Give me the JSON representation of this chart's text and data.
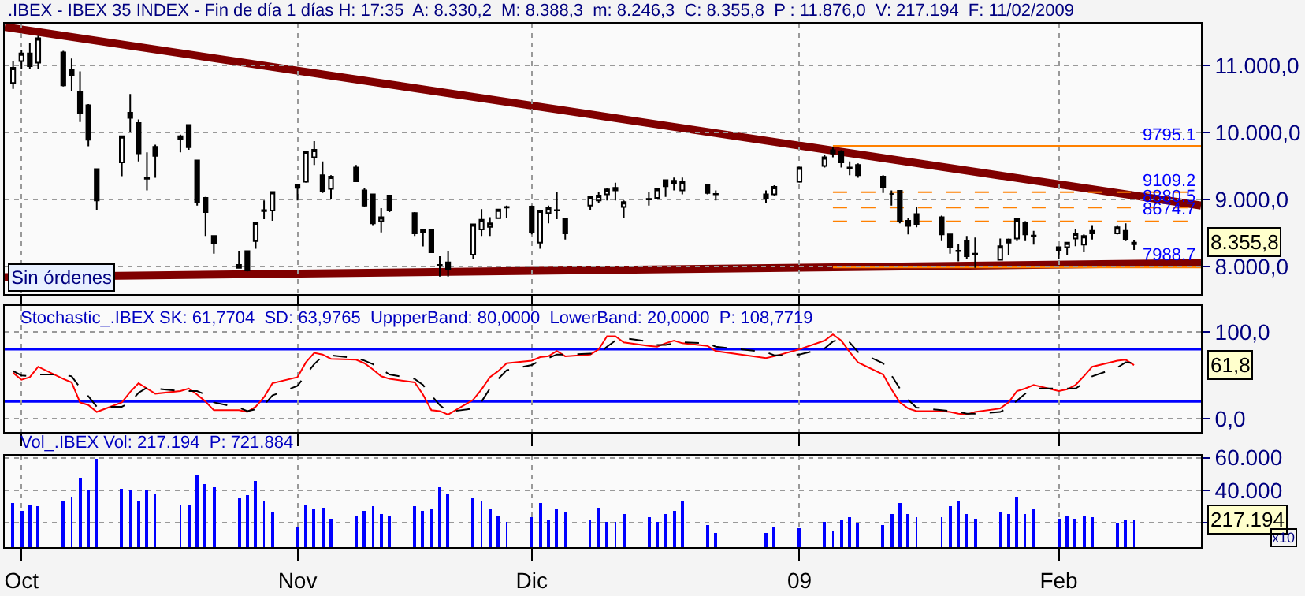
{
  "chart_data": [
    {
      "type": "candlestick",
      "title": ".IBEX - IBEX 35 INDEX - Fin de día 1 días H: 17:35  A: 8.330,2  M: 8.388,3  m: 8.246,3  C: 8.355,8  P : 11.876,0  V: 217.194  F: 11/02/2009",
      "x": [
        "2008-09-30",
        "2008-10-01",
        "2008-10-02",
        "2008-10-03",
        "2008-10-06",
        "2008-10-07",
        "2008-10-08",
        "2008-10-09",
        "2008-10-10",
        "2008-10-13",
        "2008-10-14",
        "2008-10-15",
        "2008-10-16",
        "2008-10-17",
        "2008-10-20",
        "2008-10-21",
        "2008-10-22",
        "2008-10-23",
        "2008-10-24",
        "2008-10-27",
        "2008-10-28",
        "2008-10-29",
        "2008-10-30",
        "2008-10-31",
        "2008-11-03",
        "2008-11-04",
        "2008-11-05",
        "2008-11-06",
        "2008-11-07",
        "2008-11-10",
        "2008-11-11",
        "2008-11-12",
        "2008-11-13",
        "2008-11-14",
        "2008-11-17",
        "2008-11-18",
        "2008-11-19",
        "2008-11-20",
        "2008-11-21",
        "2008-11-24",
        "2008-11-25",
        "2008-11-26",
        "2008-11-27",
        "2008-11-28",
        "2008-12-01",
        "2008-12-02",
        "2008-12-03",
        "2008-12-04",
        "2008-12-05",
        "2008-12-08",
        "2008-12-09",
        "2008-12-10",
        "2008-12-11",
        "2008-12-12",
        "2008-12-15",
        "2008-12-16",
        "2008-12-17",
        "2008-12-18",
        "2008-12-19",
        "2008-12-22",
        "2008-12-23",
        "2008-12-29",
        "2008-12-30",
        "2009-01-02",
        "2009-01-05",
        "2009-01-06",
        "2009-01-07",
        "2009-01-08",
        "2009-01-09",
        "2009-01-12",
        "2009-01-13",
        "2009-01-14",
        "2009-01-15",
        "2009-01-16",
        "2009-01-19",
        "2009-01-20",
        "2009-01-21",
        "2009-01-22",
        "2009-01-23",
        "2009-01-26",
        "2009-01-27",
        "2009-01-28",
        "2009-01-29",
        "2009-01-30",
        "2009-02-02",
        "2009-02-03",
        "2009-02-04",
        "2009-02-05",
        "2009-02-06",
        "2009-02-09",
        "2009-02-10",
        "2009-02-11"
      ],
      "ohlc": [
        [
          10744,
          11070,
          10653,
          10971
        ],
        [
          11070,
          11237,
          10956,
          11184
        ],
        [
          11184,
          11335,
          10956,
          10994
        ],
        [
          11047,
          11449,
          10956,
          11411
        ],
        [
          11199,
          11222,
          10691,
          10706
        ],
        [
          10934,
          11108,
          10615,
          10858
        ],
        [
          10615,
          10918,
          10160,
          10289
        ],
        [
          10410,
          10426,
          9797,
          9895
        ],
        [
          9455,
          9455,
          8834,
          8985
        ],
        [
          9554,
          9948,
          9349,
          9948
        ],
        [
          10297,
          10577,
          10009,
          10221
        ],
        [
          10145,
          10198,
          9569,
          9690
        ],
        [
          9318,
          9705,
          9137,
          9311
        ],
        [
          9788,
          9819,
          9326,
          9652
        ],
        [
          9903,
          9971,
          9705,
          9948
        ],
        [
          10115,
          10115,
          9743,
          9781
        ],
        [
          9584,
          9584,
          8910,
          8963
        ],
        [
          9023,
          9038,
          8455,
          8811
        ],
        [
          8455,
          8455,
          8190,
          8341
        ],
        [
          7977,
          8227,
          7970,
          8023
        ],
        [
          8227,
          8227,
          7924,
          7939
        ],
        [
          8379,
          8659,
          8265,
          8659
        ],
        [
          8826,
          8985,
          8705,
          8841
        ],
        [
          8834,
          9114,
          8682,
          9114
        ],
        [
          9175,
          9213,
          8985,
          9213
        ],
        [
          9266,
          9721,
          9251,
          9721
        ],
        [
          9630,
          9872,
          9516,
          9743
        ],
        [
          9364,
          9569,
          9099,
          9122
        ],
        [
          9160,
          9364,
          9008,
          9342
        ],
        [
          9478,
          9516,
          9273,
          9273
        ],
        [
          9137,
          9175,
          8887,
          8910
        ],
        [
          9076,
          9076,
          8606,
          8644
        ],
        [
          8675,
          8872,
          8508,
          8735
        ],
        [
          9061,
          9061,
          8811,
          8834
        ],
        [
          8796,
          8811,
          8455,
          8493
        ],
        [
          8508,
          8546,
          8300,
          8546
        ],
        [
          8546,
          8546,
          8212,
          8212
        ],
        [
          8023,
          8152,
          7848,
          8015
        ],
        [
          8061,
          8227,
          7848,
          7962
        ],
        [
          8174,
          8629,
          8114,
          8629
        ],
        [
          8553,
          8857,
          8455,
          8697
        ],
        [
          8591,
          8735,
          8455,
          8644
        ],
        [
          8720,
          8849,
          8720,
          8849
        ],
        [
          8887,
          8910,
          8720,
          8880
        ],
        [
          8894,
          8910,
          8478,
          8515
        ],
        [
          8356,
          8834,
          8265,
          8834
        ],
        [
          8796,
          8910,
          8644,
          8872
        ],
        [
          8841,
          9114,
          8705,
          8834
        ],
        [
          8705,
          8705,
          8402,
          8493
        ],
        [
          8910,
          9061,
          8834,
          9038
        ],
        [
          8985,
          9114,
          8948,
          9061
        ],
        [
          9076,
          9175,
          8985,
          9152
        ],
        [
          9137,
          9251,
          8985,
          9175
        ],
        [
          8887,
          8985,
          8720,
          8963
        ],
        [
          9008,
          9114,
          8910,
          9001
        ],
        [
          9023,
          9175,
          9008,
          9160
        ],
        [
          9289,
          9289,
          9038,
          9198
        ],
        [
          9236,
          9327,
          9137,
          9281
        ],
        [
          9137,
          9327,
          9076,
          9273
        ],
        [
          9213,
          9213,
          9076,
          9099
        ],
        [
          9084,
          9137,
          8985,
          9076
        ],
        [
          9076,
          9137,
          8948,
          9023
        ],
        [
          9076,
          9213,
          9061,
          9190
        ],
        [
          9266,
          9478,
          9251,
          9478
        ],
        [
          9501,
          9668,
          9478,
          9630
        ],
        [
          9690,
          9781,
          9630,
          9736
        ],
        [
          9721,
          9736,
          9478,
          9554
        ],
        [
          9478,
          9569,
          9364,
          9470
        ],
        [
          9516,
          9539,
          9326,
          9364
        ],
        [
          9342,
          9364,
          9099,
          9190
        ],
        [
          9084,
          9137,
          8910,
          9084
        ],
        [
          9130,
          9130,
          8644,
          8682
        ],
        [
          8682,
          8720,
          8478,
          8606
        ],
        [
          8781,
          8887,
          8584,
          8629
        ],
        [
          8735,
          8758,
          8379,
          8478
        ],
        [
          8478,
          8478,
          8190,
          8280
        ],
        [
          8235,
          8341,
          8076,
          8227
        ],
        [
          8379,
          8455,
          8114,
          8152
        ],
        [
          8190,
          8432,
          7977,
          8182
        ],
        [
          8099,
          8417,
          8099,
          8303
        ],
        [
          8356,
          8417,
          8174,
          8402
        ],
        [
          8417,
          8720,
          8379,
          8705
        ],
        [
          8659,
          8675,
          8379,
          8478
        ],
        [
          8462,
          8531,
          8326,
          8455
        ],
        [
          8288,
          8303,
          8114,
          8235
        ],
        [
          8288,
          8356,
          8174,
          8356
        ],
        [
          8417,
          8553,
          8303,
          8493
        ],
        [
          8326,
          8478,
          8212,
          8455
        ],
        [
          8493,
          8606,
          8402,
          8531
        ],
        [
          8493,
          8606,
          8478,
          8584
        ],
        [
          8531,
          8644,
          8379,
          8402
        ],
        [
          8330.2,
          8388.3,
          8246.3,
          8355.8
        ]
      ],
      "series": [
        {
          "type": "line",
          "color": "#800000",
          "x": [
            "2008-09-29",
            "2009-02-19"
          ],
          "values": [
            11580,
            8910
          ]
        },
        {
          "type": "line",
          "color": "#800000",
          "x": [
            "2008-09-29",
            "2009-02-19"
          ],
          "values": [
            7840,
            8050
          ]
        }
      ],
      "ref_lines": [
        {
          "axis": "y",
          "value": 9795.1,
          "label": "9795.1",
          "color": "#ff8000",
          "line_style": "solid"
        },
        {
          "axis": "y",
          "value": 9109.2,
          "label": "9109.2",
          "color": "#ff8000",
          "line_style": "dashed"
        },
        {
          "axis": "y",
          "value": 8880.5,
          "label": "8880.5",
          "color": "#ff8000",
          "line_style": "dashed"
        },
        {
          "axis": "y",
          "value": 8674.7,
          "label": "8674.7",
          "color": "#ff8000",
          "line_style": "dashed"
        },
        {
          "axis": "y",
          "value": 7988.7,
          "label": "7988.7",
          "color": "#ff8000",
          "line_style": "solid"
        }
      ],
      "annotations": [
        "Sin órdenes",
        "8.355,8"
      ],
      "xlim": [
        "2008-09-29",
        "2009-02-19"
      ],
      "xticks": [
        {
          "value": "2008-10-01",
          "label": null
        },
        {
          "value": "2008-11-03",
          "label": null
        },
        {
          "value": "2008-12-01",
          "label": null
        },
        {
          "value": "2009-01-02",
          "label": null
        },
        {
          "value": "2009-02-02",
          "label": null
        }
      ],
      "ylim": [
        7590,
        11630
      ],
      "yticks": [
        {
          "value": 8000,
          "label": "8.000,0"
        },
        {
          "value": 9000,
          "label": "9.000,0"
        },
        {
          "value": 10000,
          "label": "10.000,0"
        },
        {
          "value": 11000,
          "label": "11.000,0"
        }
      ],
      "grid": true,
      "tick_labels": "y"
    },
    {
      "type": "line",
      "title": "Stochastic_.IBEX SK: 61,7704  SD: 63,9765  UppperBand: 80,0000  LowerBand: 20,0000  P: 108,7719",
      "x": [
        "2008-09-30",
        "2008-10-01",
        "2008-10-02",
        "2008-10-03",
        "2008-10-06",
        "2008-10-07",
        "2008-10-08",
        "2008-10-09",
        "2008-10-10",
        "2008-10-13",
        "2008-10-14",
        "2008-10-15",
        "2008-10-16",
        "2008-10-17",
        "2008-10-20",
        "2008-10-21",
        "2008-10-22",
        "2008-10-23",
        "2008-10-24",
        "2008-10-27",
        "2008-10-28",
        "2008-10-29",
        "2008-10-30",
        "2008-10-31",
        "2008-11-03",
        "2008-11-04",
        "2008-11-05",
        "2008-11-06",
        "2008-11-07",
        "2008-11-10",
        "2008-11-11",
        "2008-11-12",
        "2008-11-13",
        "2008-11-14",
        "2008-11-17",
        "2008-11-18",
        "2008-11-19",
        "2008-11-20",
        "2008-11-21",
        "2008-11-24",
        "2008-11-25",
        "2008-11-26",
        "2008-11-27",
        "2008-11-28",
        "2008-12-01",
        "2008-12-02",
        "2008-12-03",
        "2008-12-04",
        "2008-12-05",
        "2008-12-08",
        "2008-12-09",
        "2008-12-10",
        "2008-12-11",
        "2008-12-12",
        "2008-12-15",
        "2008-12-16",
        "2008-12-17",
        "2008-12-18",
        "2008-12-19",
        "2008-12-22",
        "2008-12-23",
        "2008-12-29",
        "2008-12-30",
        "2009-01-02",
        "2009-01-05",
        "2009-01-06",
        "2009-01-07",
        "2009-01-08",
        "2009-01-09",
        "2009-01-12",
        "2009-01-13",
        "2009-01-14",
        "2009-01-15",
        "2009-01-16",
        "2009-01-19",
        "2009-01-20",
        "2009-01-21",
        "2009-01-22",
        "2009-01-23",
        "2009-01-26",
        "2009-01-27",
        "2009-01-28",
        "2009-01-29",
        "2009-01-30",
        "2009-02-02",
        "2009-02-03",
        "2009-02-04",
        "2009-02-05",
        "2009-02-06",
        "2009-02-09",
        "2009-02-10",
        "2009-02-11"
      ],
      "series": [
        {
          "color": "#ff0000",
          "line_style": "solid",
          "values": [
            53,
            45,
            48,
            60,
            46,
            42,
            19,
            16,
            8,
            19,
            31,
            41,
            35,
            29,
            32,
            35,
            28,
            20,
            10,
            10,
            8,
            14,
            25,
            41,
            48,
            65,
            76,
            74,
            69,
            68,
            64,
            57,
            49,
            46,
            42,
            28,
            10,
            9,
            5,
            22,
            34,
            48,
            55,
            64,
            67,
            71,
            72,
            78,
            72,
            74,
            80,
            95,
            95,
            88,
            84,
            83,
            87,
            90,
            87,
            84,
            78,
            70,
            72,
            80,
            90,
            97,
            90,
            77,
            65,
            51,
            34,
            19,
            12,
            9,
            9,
            8,
            6,
            5,
            8,
            12,
            19,
            32,
            35,
            39,
            32,
            34,
            39,
            49,
            60,
            67,
            68,
            61.8
          ]
        },
        {
          "color": "#000000",
          "line_style": "dashed",
          "values": [
            55,
            50,
            49,
            51,
            51,
            49,
            36,
            26,
            14,
            14,
            19,
            30,
            36,
            35,
            32,
            32,
            32,
            28,
            19,
            13,
            9,
            11,
            16,
            27,
            38,
            51,
            63,
            72,
            73,
            70,
            67,
            63,
            57,
            51,
            46,
            39,
            27,
            16,
            8,
            12,
            20,
            35,
            46,
            56,
            62,
            67,
            70,
            74,
            74,
            75,
            75,
            83,
            90,
            93,
            89,
            85,
            85,
            87,
            88,
            87,
            83,
            77,
            73,
            74,
            81,
            89,
            92,
            88,
            77,
            64,
            50,
            35,
            22,
            13,
            10,
            9,
            8,
            6,
            6,
            8,
            13,
            21,
            29,
            35,
            35,
            35,
            35,
            41,
            49,
            59,
            65,
            64
          ]
        }
      ],
      "ref_lines": [
        {
          "axis": "y",
          "value": 80,
          "color": "#0000ff",
          "line_style": "solid"
        },
        {
          "axis": "y",
          "value": 20,
          "color": "#0000ff",
          "line_style": "solid"
        }
      ],
      "annotations": [
        "61,8"
      ],
      "xlim": [
        "2008-09-29",
        "2009-02-19"
      ],
      "xticks": [
        {
          "value": "2008-10-01",
          "label": null
        },
        {
          "value": "2008-11-03",
          "label": null
        },
        {
          "value": "2008-12-01",
          "label": null
        },
        {
          "value": "2009-01-02",
          "label": null
        },
        {
          "value": "2009-02-02",
          "label": null
        }
      ],
      "ylim": [
        -15,
        130
      ],
      "yticks": [
        {
          "value": 0,
          "label": "0,0"
        },
        {
          "value": 100,
          "label": "100,0"
        }
      ],
      "grid": true,
      "tick_labels": "y"
    },
    {
      "type": "bar",
      "title": "Vol_.IBEX Vol: 217.194  P: 721.884",
      "x": [
        "2008-09-30",
        "2008-10-01",
        "2008-10-02",
        "2008-10-03",
        "2008-10-06",
        "2008-10-07",
        "2008-10-08",
        "2008-10-09",
        "2008-10-10",
        "2008-10-13",
        "2008-10-14",
        "2008-10-15",
        "2008-10-16",
        "2008-10-17",
        "2008-10-20",
        "2008-10-21",
        "2008-10-22",
        "2008-10-23",
        "2008-10-24",
        "2008-10-27",
        "2008-10-28",
        "2008-10-29",
        "2008-10-30",
        "2008-10-31",
        "2008-11-03",
        "2008-11-04",
        "2008-11-05",
        "2008-11-06",
        "2008-11-07",
        "2008-11-10",
        "2008-11-11",
        "2008-11-12",
        "2008-11-13",
        "2008-11-14",
        "2008-11-17",
        "2008-11-18",
        "2008-11-19",
        "2008-11-20",
        "2008-11-21",
        "2008-11-24",
        "2008-11-25",
        "2008-11-26",
        "2008-11-27",
        "2008-11-28",
        "2008-12-01",
        "2008-12-02",
        "2008-12-03",
        "2008-12-04",
        "2008-12-05",
        "2008-12-08",
        "2008-12-09",
        "2008-12-10",
        "2008-12-11",
        "2008-12-12",
        "2008-12-15",
        "2008-12-16",
        "2008-12-17",
        "2008-12-18",
        "2008-12-19",
        "2008-12-22",
        "2008-12-23",
        "2008-12-29",
        "2008-12-30",
        "2009-01-02",
        "2009-01-05",
        "2009-01-06",
        "2009-01-07",
        "2009-01-08",
        "2009-01-09",
        "2009-01-12",
        "2009-01-13",
        "2009-01-14",
        "2009-01-15",
        "2009-01-16",
        "2009-01-19",
        "2009-01-20",
        "2009-01-21",
        "2009-01-22",
        "2009-01-23",
        "2009-01-26",
        "2009-01-27",
        "2009-01-28",
        "2009-01-29",
        "2009-01-30",
        "2009-02-02",
        "2009-02-03",
        "2009-02-04",
        "2009-02-05",
        "2009-02-06",
        "2009-02-09",
        "2009-02-10",
        "2009-02-11"
      ],
      "values": [
        32100,
        27300,
        31100,
        29900,
        32700,
        35900,
        47900,
        39700,
        59000,
        40300,
        39700,
        32700,
        39700,
        37500,
        31100,
        31100,
        48900,
        43200,
        41300,
        34600,
        36500,
        45100,
        32700,
        25700,
        17800,
        30800,
        28000,
        28900,
        22200,
        23800,
        26700,
        29900,
        25100,
        24100,
        29500,
        27000,
        28000,
        41300,
        37500,
        34600,
        32700,
        28000,
        24100,
        20300,
        23500,
        31800,
        21300,
        28000,
        25700,
        21300,
        28900,
        20300,
        20300,
        25100,
        23200,
        20300,
        25100,
        27000,
        32700,
        18400,
        13100,
        13700,
        16900,
        16100,
        20300,
        14000,
        21300,
        23500,
        19400,
        18400,
        25100,
        31800,
        25100,
        23500,
        23200,
        30200,
        33000,
        25100,
        22200,
        26400,
        25100,
        35600,
        25100,
        28000,
        22600,
        23800,
        22200,
        24100,
        23500,
        19400,
        21600,
        21700
      ],
      "color": "#0000ff",
      "annotations": [
        "217.194",
        "x10"
      ],
      "xlim": [
        "2008-09-29",
        "2009-02-19"
      ],
      "xticks": [
        {
          "value": "2008-10-01",
          "label": "Oct"
        },
        {
          "value": "2008-11-03",
          "label": "Nov"
        },
        {
          "value": "2008-12-01",
          "label": "Dic"
        },
        {
          "value": "2009-01-02",
          "label": "09"
        },
        {
          "value": "2009-02-02",
          "label": "Feb"
        }
      ],
      "ylim": [
        5000,
        61000
      ],
      "yticks": [
        {
          "value": 20000,
          "label": null
        },
        {
          "value": 40000,
          "label": "40.000"
        },
        {
          "value": 60000,
          "label": "60.000"
        }
      ],
      "grid": true
    }
  ]
}
